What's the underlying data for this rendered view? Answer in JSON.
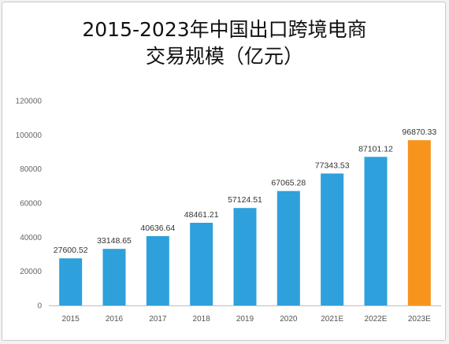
{
  "chart_data": {
    "type": "bar",
    "title_line1": "2015-2023年中国出口跨境电商",
    "title_line2": "交易规模（亿元）",
    "xlabel": "",
    "ylabel": "",
    "ylim": [
      0,
      120000
    ],
    "yticks": [
      "0",
      "20000",
      "40000",
      "60000",
      "80000",
      "100000",
      "120000"
    ],
    "grid": false,
    "categories": [
      "2015",
      "2016",
      "2017",
      "2018",
      "2019",
      "2020",
      "2021E",
      "2022E",
      "2023E"
    ],
    "values": [
      27600.52,
      33148.65,
      40636.64,
      48461.21,
      57124.51,
      67065.28,
      77343.53,
      87101.12,
      96870.33
    ],
    "value_labels": [
      "27600.52",
      "33148.65",
      "40636.64",
      "48461.21",
      "57124.51",
      "67065.28",
      "77343.53",
      "87101.12",
      "96870.33"
    ],
    "colors": {
      "bar": "#2ea0dc",
      "highlight_bar": "#f7941d",
      "axis": "#bfbfbf"
    },
    "highlight_index": 8
  }
}
